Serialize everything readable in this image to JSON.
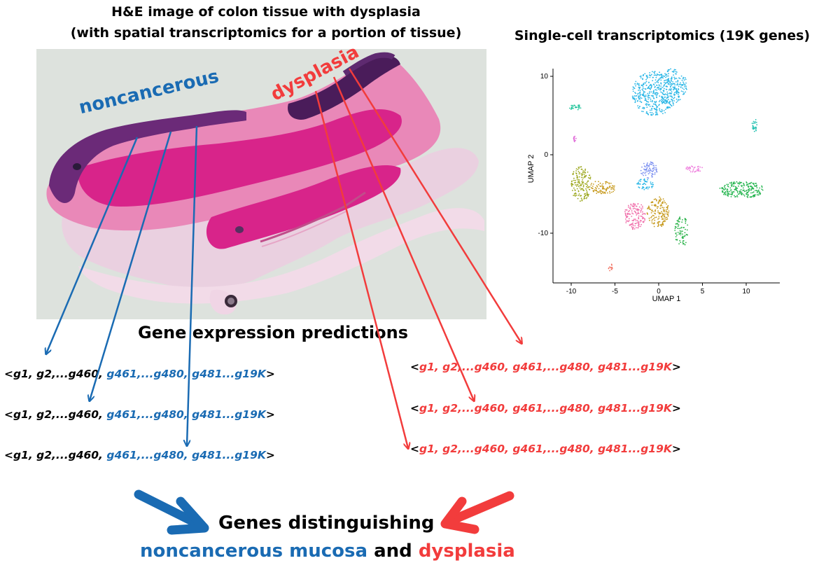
{
  "he_title": {
    "line1": "H&E image of colon tissue with dysplasia",
    "line2": "(with spatial transcriptomics for a portion of tissue)"
  },
  "sc_title": "Single-cell transcriptomics (19K genes)",
  "tissue_labels": {
    "noncancerous": "noncancerous",
    "dysplasia": "dysplasia"
  },
  "umap": {
    "xlabel": "UMAP 1",
    "ylabel": "UMAP 2",
    "xticks": [
      "-10",
      "-5",
      "0",
      "5",
      "10"
    ],
    "yticks": [
      "10",
      "0",
      "-10"
    ]
  },
  "predictions_title": "Gene expression predictions",
  "vector": {
    "open": "<",
    "part1": "g1, g2,...g460,",
    "part2": "g461,...g480,",
    "part3": "g481...g19K",
    "close": ">"
  },
  "bottom": {
    "line1": "Genes distinguishing",
    "noncancerous": "noncancerous mucosa",
    "and": "and",
    "dysplasia": "dysplasia"
  },
  "colors": {
    "blue": "#1a6bb3",
    "red": "#f23c3c",
    "tissue_bg": "#dde2dd"
  }
}
